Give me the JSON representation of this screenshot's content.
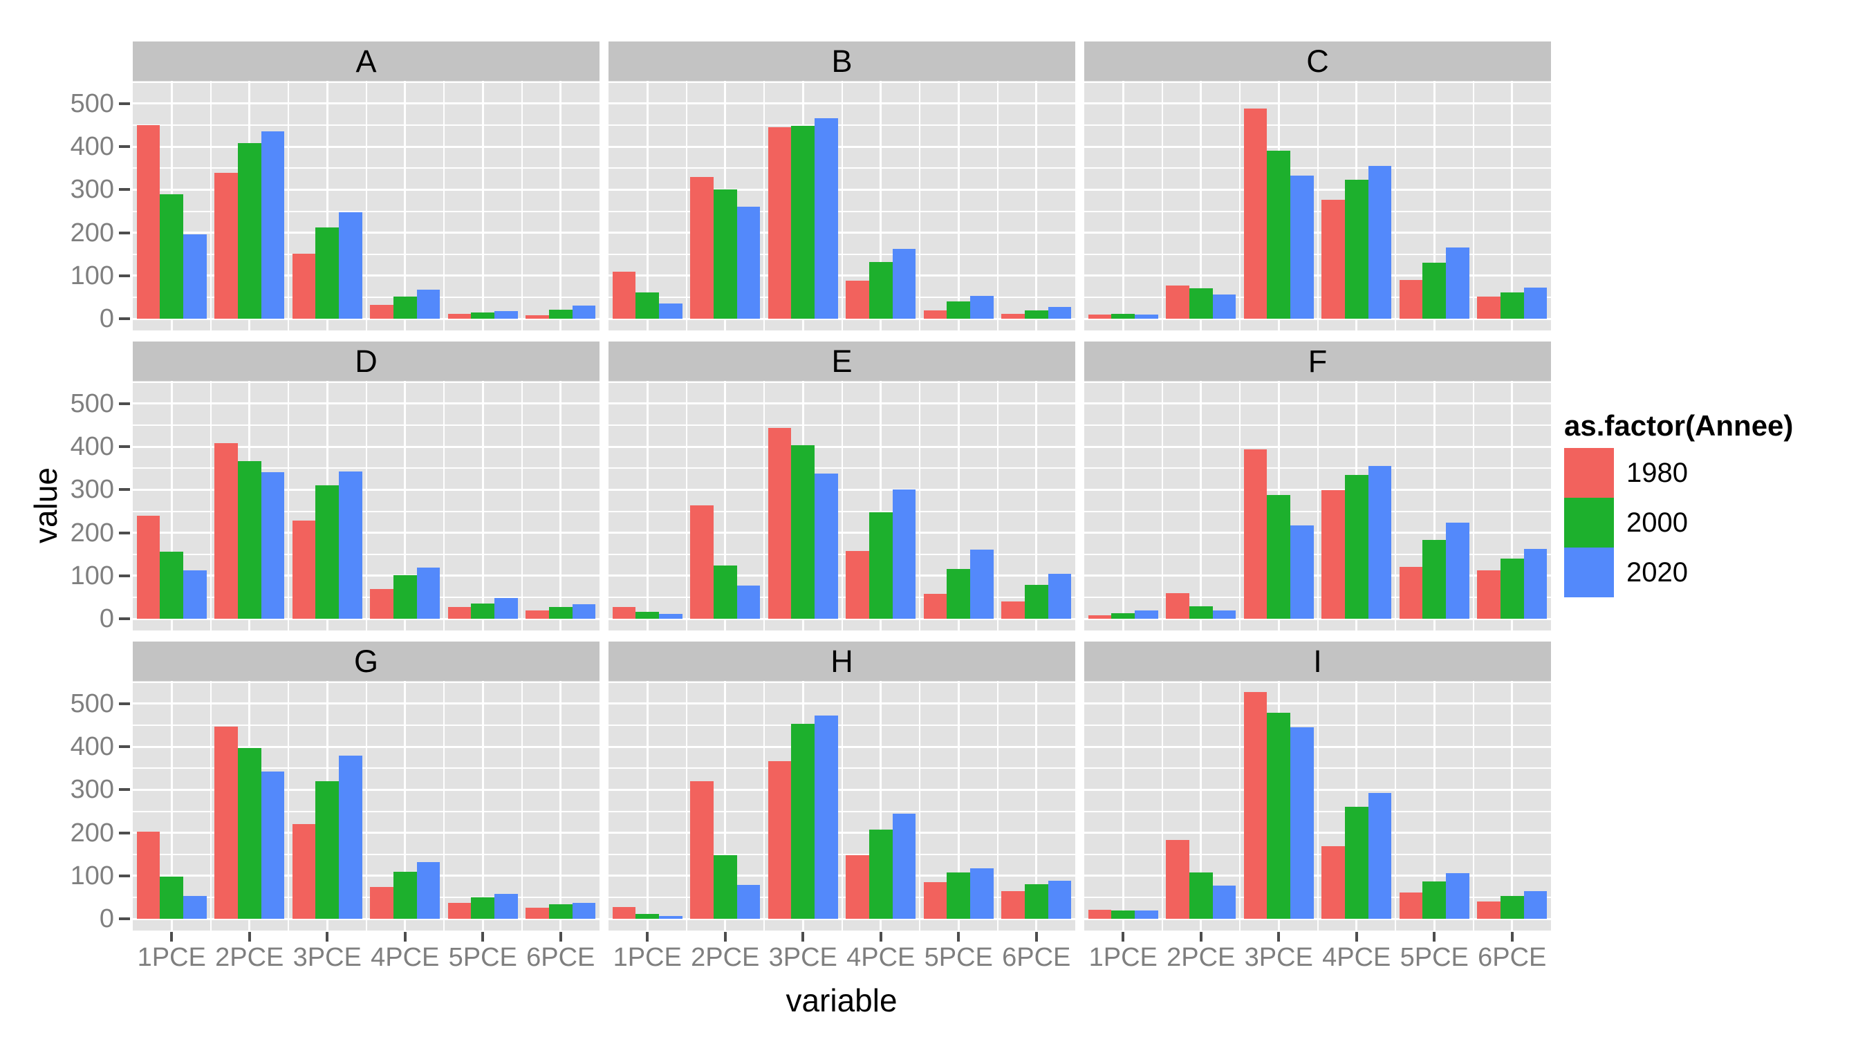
{
  "chart_data": {
    "type": "bar",
    "layout_kind": "faceted-grouped-bar",
    "facet_labels": [
      "A",
      "B",
      "C",
      "D",
      "E",
      "F",
      "G",
      "H",
      "I"
    ],
    "categories": [
      "1PCE",
      "2PCE",
      "3PCE",
      "4PCE",
      "5PCE",
      "6PCE"
    ],
    "series_names": [
      "1980",
      "2000",
      "2020"
    ],
    "series_colors": {
      "1980": "#F2625D",
      "2000": "#1DB02D",
      "2020": "#5389FB"
    },
    "values": {
      "A": {
        "1980": [
          450,
          340,
          152,
          33,
          12,
          8
        ],
        "2000": [
          290,
          409,
          212,
          51,
          15,
          22
        ],
        "2020": [
          197,
          436,
          248,
          67,
          18,
          31
        ]
      },
      "B": {
        "1980": [
          110,
          330,
          446,
          89,
          20,
          11
        ],
        "2000": [
          62,
          300,
          449,
          132,
          40,
          20
        ],
        "2020": [
          35,
          260,
          467,
          162,
          54,
          27
        ]
      },
      "C": {
        "1980": [
          10,
          77,
          488,
          277,
          90,
          52
        ],
        "2000": [
          12,
          71,
          390,
          323,
          131,
          62
        ],
        "2020": [
          10,
          56,
          333,
          355,
          165,
          72
        ]
      },
      "D": {
        "1980": [
          240,
          409,
          228,
          69,
          28,
          19
        ],
        "2000": [
          156,
          366,
          311,
          101,
          36,
          27
        ],
        "2020": [
          112,
          341,
          342,
          120,
          48,
          34
        ]
      },
      "E": {
        "1980": [
          28,
          264,
          444,
          158,
          58,
          40
        ],
        "2000": [
          16,
          124,
          404,
          247,
          116,
          79
        ],
        "2020": [
          12,
          77,
          337,
          300,
          161,
          104
        ]
      },
      "F": {
        "1980": [
          8,
          60,
          394,
          299,
          121,
          112
        ],
        "2000": [
          13,
          29,
          288,
          335,
          184,
          140
        ],
        "2020": [
          20,
          20,
          218,
          355,
          223,
          162
        ]
      },
      "G": {
        "1980": [
          202,
          447,
          220,
          74,
          37,
          26
        ],
        "2000": [
          99,
          397,
          320,
          109,
          50,
          34
        ],
        "2020": [
          54,
          342,
          380,
          132,
          58,
          38
        ]
      },
      "H": {
        "1980": [
          27,
          320,
          366,
          148,
          86,
          65
        ],
        "2000": [
          12,
          148,
          453,
          207,
          108,
          81
        ],
        "2020": [
          7,
          79,
          473,
          244,
          117,
          88
        ]
      },
      "I": {
        "1980": [
          22,
          184,
          527,
          169,
          62,
          41
        ],
        "2000": [
          19,
          108,
          479,
          260,
          87,
          53
        ],
        "2020": [
          20,
          78,
          445,
          292,
          107,
          65
        ]
      }
    },
    "ylabel": "value",
    "xlabel": "variable",
    "yticks": [
      0,
      100,
      200,
      300,
      400,
      500
    ],
    "ylim": [
      -27,
      553
    ],
    "grid": "on",
    "legend_title": "as.factor(Annee)",
    "legend_entries": [
      "1980",
      "2000",
      "2020"
    ],
    "legend_position": "right"
  },
  "style": {
    "panel_bg": "#E2E2E2",
    "strip_bg": "#C3C3C3",
    "grid_color": "#FFFFFF",
    "axis_text_color": "#7F7F7F",
    "tick_color": "#4D4D4D",
    "title_color": "#000000",
    "background": "#FFFFFF"
  }
}
